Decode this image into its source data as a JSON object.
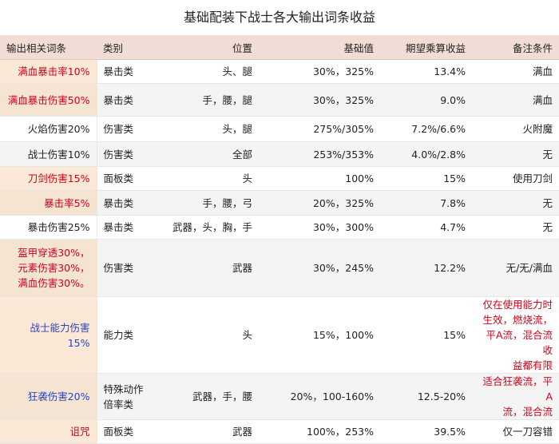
{
  "title": "基础配装下战士各大输出词条收益",
  "headers": [
    "输出相关词条",
    "类别",
    "位置",
    "基础值",
    "期望乘算收益",
    "备注条件"
  ],
  "rows": [
    {
      "cells": [
        "满血暴击率10%",
        "暴击类",
        "头、腿",
        "30%，325%",
        "13.4%",
        "满血"
      ],
      "color": "red",
      "note_color": "dark",
      "alt": false,
      "hl": true,
      "h": 30
    },
    {
      "cells": [
        "满血暴击伤害50%",
        "暴击类",
        "手，腰，腿",
        "30%，325%",
        "9.0%",
        "满血"
      ],
      "color": "red",
      "note_color": "dark",
      "alt": true,
      "hl": true,
      "h": 41
    },
    {
      "cells": [
        "火焰伤害20%",
        "伤害类",
        "头，腿",
        "275%/305%",
        "7.2%/6.6%",
        "火附魔"
      ],
      "color": "dark",
      "note_color": "dark",
      "alt": false,
      "hl": false,
      "h": 32
    },
    {
      "cells": [
        "战士伤害10%",
        "伤害类",
        "全部",
        "253%/353%",
        "4.0%/2.8%",
        "无"
      ],
      "color": "dark",
      "note_color": "dark",
      "alt": true,
      "hl": false,
      "h": 31
    },
    {
      "cells": [
        "刀剑伤害15%",
        "面板类",
        "头",
        "100%",
        "15%",
        "使用刀剑"
      ],
      "color": "red",
      "note_color": "dark",
      "alt": false,
      "hl": true,
      "h": 30
    },
    {
      "cells": [
        "暴击率5%",
        "暴击类",
        "手，腰，弓",
        "20%，325%",
        "7.8%",
        "无"
      ],
      "color": "red",
      "note_color": "dark",
      "alt": true,
      "hl": true,
      "h": 31
    },
    {
      "cells": [
        "暴击伤害25%",
        "暴击类",
        "武器，头，胸，手",
        "30%，300%",
        "4.7%",
        "无"
      ],
      "color": "dark",
      "note_color": "dark",
      "alt": false,
      "hl": false,
      "h": 30
    },
    {
      "cells": [
        "盔甲穿透30%，\n元素伤害30%，\n满血伤害30%。",
        "伤害类",
        "武器",
        "30%，245%",
        "12.2%",
        "无/无/满血"
      ],
      "color": "red",
      "note_color": "dark",
      "alt": true,
      "hl": true,
      "h": 72
    },
    {
      "cells": [
        "战士能力伤害\n15%",
        "能力类",
        "头",
        "15%，100%",
        "15%",
        "仅在使用能力时\n生效，燃烧流，\n平A流，混合流收\n益都有限"
      ],
      "color": "blue",
      "note_color": "red",
      "alt": false,
      "hl": true,
      "h": 88
    },
    {
      "cells": [
        "狂袭伤害20%",
        "特殊动作\n倍率类",
        "武器，手，腰",
        "20%，100-160%",
        "12.5-20%",
        "适合狂袭流，平A\n流，混合流"
      ],
      "color": "blue",
      "note_color": "red",
      "alt": true,
      "hl": true,
      "h": 52
    },
    {
      "cells": [
        "诅咒",
        "面板类",
        "武器",
        "100%，253%",
        "39.5%",
        "仅一刀容错"
      ],
      "color": "red",
      "note_color": "dark",
      "alt": false,
      "hl": true,
      "h": 30
    }
  ]
}
